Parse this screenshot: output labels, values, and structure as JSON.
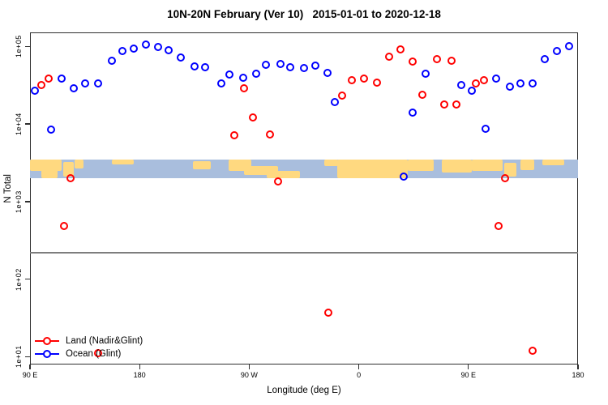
{
  "title": "10N-20N February (Ver 10)   2015-01-01 to 2020-12-18",
  "legend": {
    "items": [
      {
        "label": "Land (Nadir&Glint)",
        "color": "#ff0000"
      },
      {
        "label": "Ocean (Glint)",
        "color": "#0000ff"
      }
    ]
  },
  "colors": {
    "land_series": "#ff0000",
    "ocean_series": "#0000ff",
    "map_ocean": "#a9bedd",
    "map_land": "#ffd980",
    "frame": "#2e2e2e",
    "threshold_line": "#7d7d7d"
  },
  "chart_data": {
    "type": "scatter",
    "title": "10N-20N February (Ver 10)   2015-01-01 to 2020-12-18",
    "xlabel": "Longitude (deg E)",
    "ylabel": "N Total",
    "x_axis": {
      "range": [
        90,
        540
      ],
      "ticks": [
        {
          "label": "90 E",
          "lon": 90
        },
        {
          "label": "180",
          "lon": 180
        },
        {
          "label": "90 W",
          "lon": 270
        },
        {
          "label": "0",
          "lon": 360
        },
        {
          "label": "90 E",
          "lon": 450
        },
        {
          "label": "180",
          "lon": 540
        }
      ]
    },
    "y_axis": {
      "scale": "log10",
      "range_log": [
        0.9,
        5.18
      ],
      "ticks": [
        {
          "label": "1e+05",
          "value": 100000
        },
        {
          "label": "1e+04",
          "value": 10000
        },
        {
          "label": "1e+03",
          "value": 1000
        },
        {
          "label": "1e+02",
          "value": 100
        },
        {
          "label": "1e+01",
          "value": 10
        }
      ]
    },
    "threshold_line_value": 220,
    "map_band": {
      "value_range": [
        2000,
        3500
      ],
      "ocean_color": "#a9bedd",
      "land_color": "#ffd980",
      "patches": [
        [
          0.0,
          0.058,
          0.0,
          0.62
        ],
        [
          0.02,
          0.05,
          0.5,
          1.0
        ],
        [
          0.06,
          0.08,
          0.15,
          0.9
        ],
        [
          0.082,
          0.097,
          0.0,
          0.5
        ],
        [
          0.15,
          0.19,
          0.0,
          0.28
        ],
        [
          0.298,
          0.33,
          0.12,
          0.55
        ],
        [
          0.362,
          0.404,
          0.0,
          0.62
        ],
        [
          0.39,
          0.452,
          0.35,
          0.85
        ],
        [
          0.432,
          0.492,
          0.6,
          1.0
        ],
        [
          0.537,
          0.562,
          0.0,
          0.35
        ],
        [
          0.56,
          0.69,
          0.0,
          1.0
        ],
        [
          0.69,
          0.737,
          0.0,
          0.6
        ],
        [
          0.752,
          0.806,
          0.0,
          0.72
        ],
        [
          0.806,
          0.862,
          0.0,
          0.6
        ],
        [
          0.865,
          0.888,
          0.2,
          0.9
        ],
        [
          0.895,
          0.92,
          0.0,
          0.55
        ],
        [
          0.935,
          0.975,
          0.0,
          0.3
        ]
      ]
    },
    "series": [
      {
        "name": "Land (Nadir&Glint)",
        "color": "#ff0000",
        "points": [
          [
            99,
            32000
          ],
          [
            105,
            38000
          ],
          [
            118,
            490
          ],
          [
            123,
            2000
          ],
          [
            146,
            11
          ],
          [
            258,
            7100
          ],
          [
            266,
            29000
          ],
          [
            273,
            12000
          ],
          [
            287,
            7300
          ],
          [
            294,
            1800
          ],
          [
            335,
            37
          ],
          [
            346,
            23000
          ],
          [
            354,
            37000
          ],
          [
            364,
            38000
          ],
          [
            375,
            34000
          ],
          [
            385,
            73000
          ],
          [
            394,
            91000
          ],
          [
            404,
            63000
          ],
          [
            412,
            24000
          ],
          [
            424,
            68000
          ],
          [
            430,
            18000
          ],
          [
            436,
            66000
          ],
          [
            440,
            18000
          ],
          [
            456,
            33000
          ],
          [
            463,
            37000
          ],
          [
            475,
            490
          ],
          [
            480,
            2000
          ],
          [
            503,
            12
          ]
        ]
      },
      {
        "name": "Ocean (Glint)",
        "color": "#0000ff",
        "points": [
          [
            94,
            27000
          ],
          [
            107,
            8500
          ],
          [
            116,
            38000
          ],
          [
            126,
            29000
          ],
          [
            135,
            33000
          ],
          [
            146,
            33000
          ],
          [
            157,
            65000
          ],
          [
            166,
            87000
          ],
          [
            175,
            93000
          ],
          [
            185,
            105000
          ],
          [
            195,
            98000
          ],
          [
            204,
            89000
          ],
          [
            214,
            71000
          ],
          [
            225,
            55000
          ],
          [
            234,
            54000
          ],
          [
            247,
            33000
          ],
          [
            254,
            43000
          ],
          [
            265,
            39000
          ],
          [
            276,
            44000
          ],
          [
            284,
            58000
          ],
          [
            296,
            59000
          ],
          [
            304,
            54000
          ],
          [
            315,
            52000
          ],
          [
            324,
            56000
          ],
          [
            334,
            46000
          ],
          [
            340,
            19000
          ],
          [
            397,
            2100
          ],
          [
            404,
            14000
          ],
          [
            415,
            44000
          ],
          [
            444,
            32000
          ],
          [
            453,
            27000
          ],
          [
            464,
            8700
          ],
          [
            473,
            38000
          ],
          [
            484,
            30000
          ],
          [
            493,
            33000
          ],
          [
            503,
            33000
          ],
          [
            513,
            68000
          ],
          [
            523,
            87000
          ],
          [
            533,
            100000
          ]
        ]
      }
    ]
  }
}
